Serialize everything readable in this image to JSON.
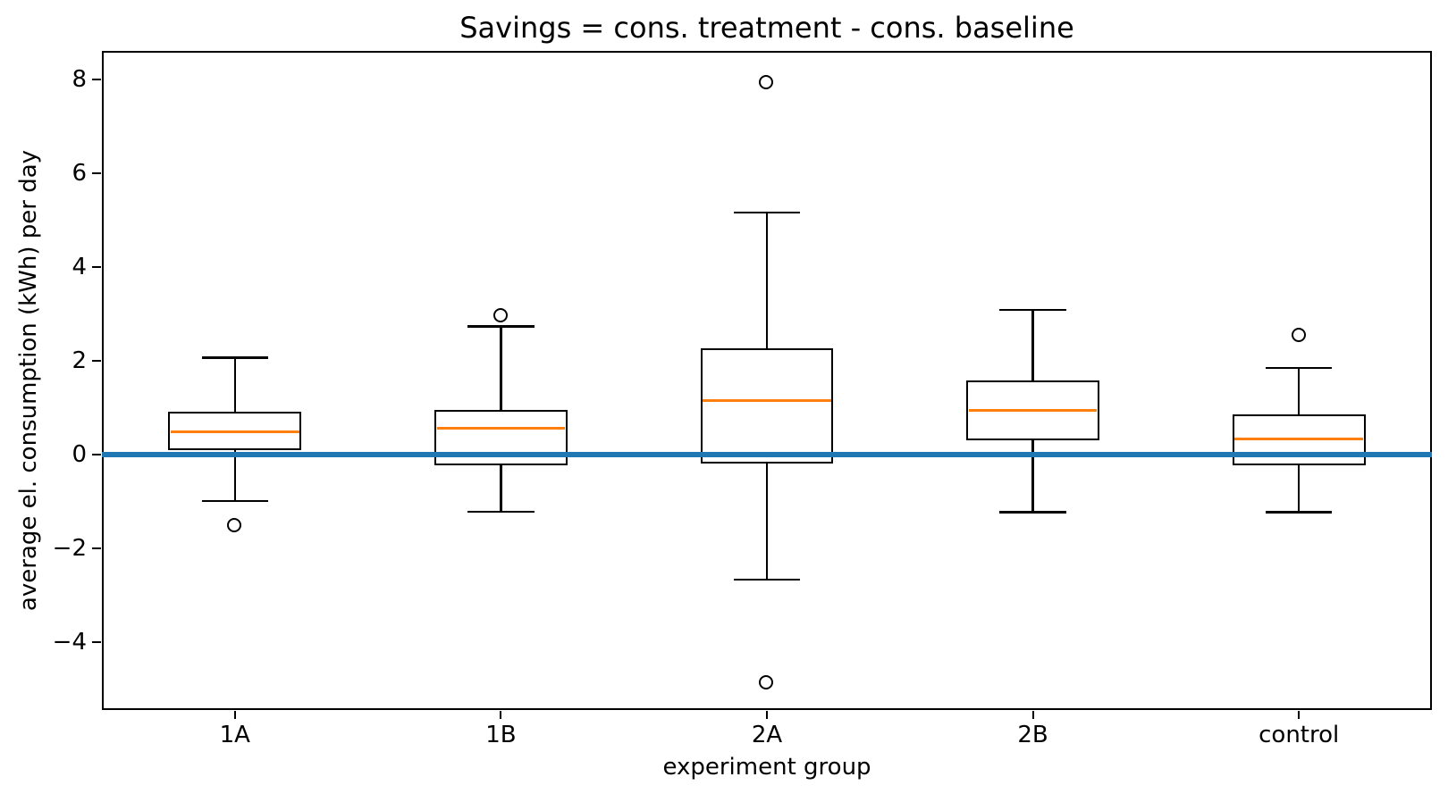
{
  "chart_data": {
    "type": "box",
    "title": "Savings = cons. treatment - cons. baseline",
    "xlabel": "experiment group",
    "ylabel": "average el. consumption (kWh) per day",
    "categories": [
      "1A",
      "1B",
      "2A",
      "2B",
      "control"
    ],
    "ylim": [
      -5.46,
      8.6
    ],
    "yticks": {
      "values": [
        8,
        6,
        4,
        2,
        0,
        -2,
        -4
      ],
      "labels": [
        "8",
        "6",
        "4",
        "2",
        "0",
        "−2",
        "−4"
      ]
    },
    "grid": false,
    "legend": false,
    "reference_line": {
      "y": 0,
      "color": "#1f77b4"
    },
    "colors": {
      "box_edge": "#000000",
      "median": "#ff7f0e",
      "reference": "#1f77b4",
      "background": "#ffffff"
    },
    "series": [
      {
        "group": "1A",
        "whisker_low": -1.0,
        "q1": 0.09,
        "median": 0.48,
        "q3": 0.9,
        "whisker_high": 2.06,
        "outliers": [
          -1.52
        ]
      },
      {
        "group": "1B",
        "whisker_low": -1.23,
        "q1": -0.24,
        "median": 0.56,
        "q3": 0.95,
        "whisker_high": 2.72,
        "outliers": [
          2.95
        ]
      },
      {
        "group": "2A",
        "whisker_low": -2.68,
        "q1": -0.2,
        "median": 1.14,
        "q3": 2.25,
        "whisker_high": 5.15,
        "outliers": [
          7.92,
          -4.87
        ]
      },
      {
        "group": "2B",
        "whisker_low": -1.24,
        "q1": 0.3,
        "median": 0.93,
        "q3": 1.57,
        "whisker_high": 3.08,
        "outliers": []
      },
      {
        "group": "control",
        "whisker_low": -1.24,
        "q1": -0.24,
        "median": 0.32,
        "q3": 0.84,
        "whisker_high": 1.84,
        "outliers": [
          2.54
        ]
      }
    ]
  }
}
